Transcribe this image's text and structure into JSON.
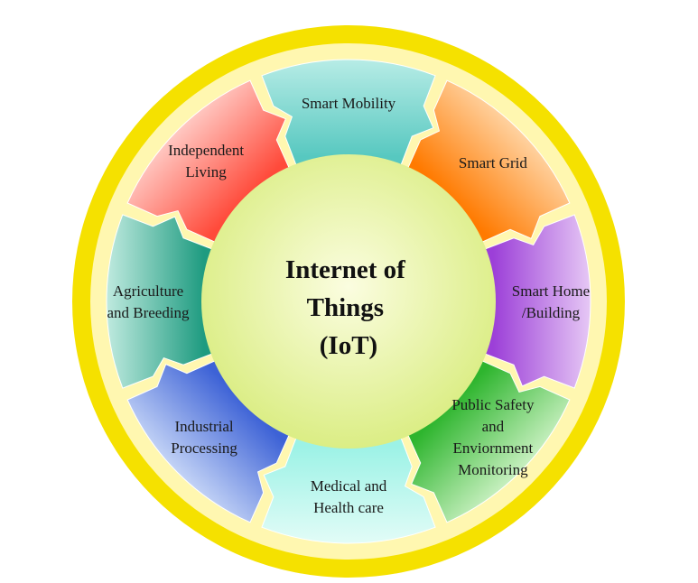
{
  "center": {
    "lines": [
      "Internet of",
      "Things",
      "(IoT)"
    ]
  },
  "segments": [
    {
      "id": "smart-mobility",
      "lines": [
        "Smart Mobility"
      ]
    },
    {
      "id": "smart-grid",
      "lines": [
        "Smart Grid"
      ]
    },
    {
      "id": "smart-home-building",
      "lines": [
        "Smart Home",
        "/Building"
      ]
    },
    {
      "id": "public-safety",
      "lines": [
        "Public Safety",
        "and",
        "Enviornment",
        "Monitoring"
      ]
    },
    {
      "id": "medical-health",
      "lines": [
        "Medical and",
        "Health care"
      ]
    },
    {
      "id": "industrial-processing",
      "lines": [
        "Industrial",
        "Processing"
      ]
    },
    {
      "id": "agriculture-breeding",
      "lines": [
        "Agriculture",
        "and Breeding"
      ]
    },
    {
      "id": "independent-living",
      "lines": [
        "Independent",
        "Living"
      ]
    }
  ],
  "colors": {
    "ring": "#f7e600",
    "ring_inner": "#fff8a0",
    "center_light": "#fbfde0",
    "center_dark": "#d8ec7c",
    "segments": [
      [
        "#57c8c0",
        "#b7ece6"
      ],
      [
        "#ff7a00",
        "#ffd2a0"
      ],
      [
        "#9c3fd8",
        "#e6c8f5"
      ],
      [
        "#2eb52e",
        "#c8f0c0"
      ],
      [
        "#9cf2e6",
        "#e2fcf7"
      ],
      [
        "#3d62d6",
        "#c3d3f6"
      ],
      [
        "#1e9b80",
        "#bfeadf"
      ],
      [
        "#ff4a3a",
        "#ffc8c2"
      ]
    ]
  }
}
